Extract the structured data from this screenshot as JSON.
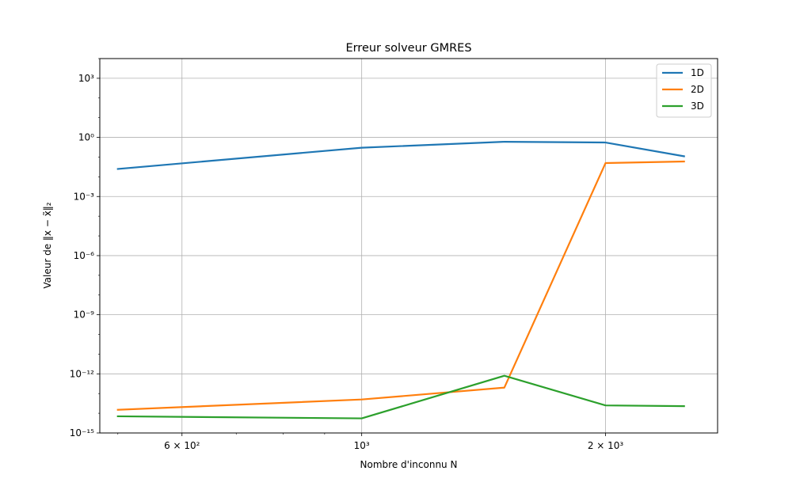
{
  "chart_data": {
    "type": "line",
    "title": "Erreur solveur GMRES",
    "xlabel": "Nombre d'inconnu N",
    "ylabel": "Valeur de ‖x − x̃‖₂",
    "xscale": "log",
    "yscale": "log",
    "xlim": [
      475,
      2750
    ],
    "ylim": [
      1e-15,
      10000.0
    ],
    "x_ticks_major": [
      {
        "value": 600,
        "label": "6 × 10²"
      },
      {
        "value": 1000,
        "label": "10³"
      },
      {
        "value": 2000,
        "label": "2 × 10³"
      }
    ],
    "y_ticks_major": [
      {
        "value": 1e-15,
        "label": "10⁻¹⁵"
      },
      {
        "value": 1e-12,
        "label": "10⁻¹²"
      },
      {
        "value": 1e-09,
        "label": "10⁻⁹"
      },
      {
        "value": 1e-06,
        "label": "10⁻⁶"
      },
      {
        "value": 0.001,
        "label": "10⁻³"
      },
      {
        "value": 1,
        "label": "10⁰"
      },
      {
        "value": 1000,
        "label": "10³"
      }
    ],
    "grid": true,
    "legend_position": "top-right",
    "x": [
      500,
      1000,
      1500,
      2000,
      2500
    ],
    "series": [
      {
        "name": "1D",
        "color": "#1f77b4",
        "values": [
          0.025,
          0.3,
          0.6,
          0.55,
          0.11
        ]
      },
      {
        "name": "2D",
        "color": "#ff7f0e",
        "values": [
          1.5e-14,
          5e-14,
          2e-13,
          0.05,
          0.06
        ]
      },
      {
        "name": "3D",
        "color": "#2ca02c",
        "values": [
          7e-15,
          5.5e-15,
          8e-13,
          2.5e-14,
          2.3e-14
        ]
      }
    ]
  }
}
